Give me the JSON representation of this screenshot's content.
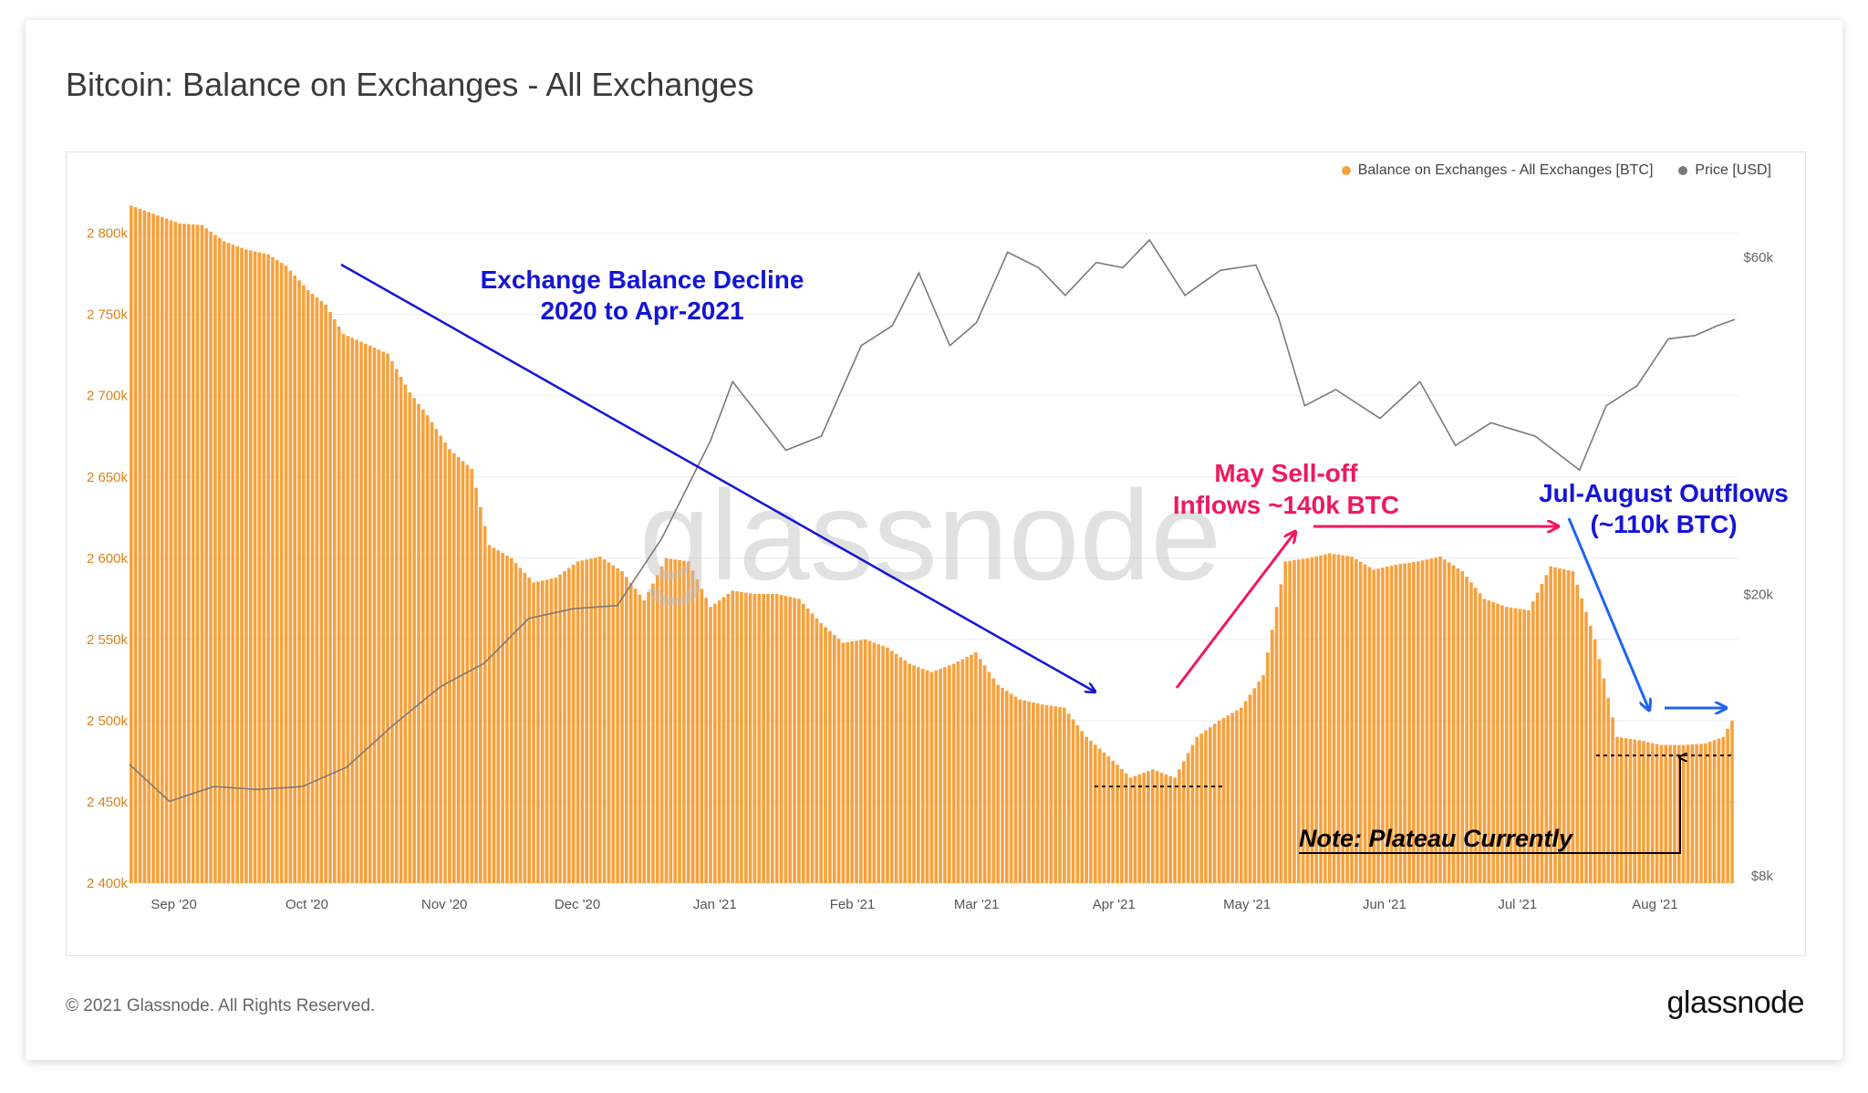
{
  "page": {
    "title": "Bitcoin: Balance on Exchanges - All Exchanges",
    "footer": "© 2021 Glassnode. All Rights Reserved.",
    "brand": "glassnode",
    "watermark": "glassnode"
  },
  "legend": [
    {
      "label": "Balance on Exchanges - All Exchanges [BTC]",
      "color": "#f7931a"
    },
    {
      "label": "Price [USD]",
      "color": "#7a7a7a"
    }
  ],
  "annotations": {
    "decline_line1": "Exchange Balance Decline",
    "decline_line2": "2020 to Apr-2021",
    "selloff_line1": "May Sell-off",
    "selloff_line2": "Inflows ~140k BTC",
    "outflow_line1": "Jul-August Outflows",
    "outflow_line2": "(~110k BTC)",
    "note": "Note: Plateau Currently"
  },
  "colors": {
    "bar": "#f7a13e",
    "price": "#7a7a7a",
    "blue_annotation": "#1414d6",
    "pink_annotation": "#f0185e",
    "bright_blue": "#1e64f0"
  },
  "chart_data": {
    "type": "bar",
    "x_ticks": [
      "Sep '20",
      "Oct '20",
      "Nov '20",
      "Dec '20",
      "Jan '21",
      "Feb '21",
      "Mar '21",
      "Apr '21",
      "May '21",
      "Jun '21",
      "Jul '21",
      "Aug '21"
    ],
    "y_left_ticks": [
      "2 400k",
      "2 450k",
      "2 500k",
      "2 550k",
      "2 600k",
      "2 650k",
      "2 700k",
      "2 750k",
      "2 800k"
    ],
    "y_left_range": [
      2400000,
      2820000
    ],
    "y_right_ticks": [
      "$8k",
      "$20k",
      "$60k"
    ],
    "y_right_scale": "log",
    "x_range": [
      "2020-08-27",
      "2021-08-24"
    ],
    "series": [
      {
        "name": "Balance on Exchanges - All Exchanges [BTC]",
        "kind": "bar",
        "points": [
          [
            "2020-08-27",
            2817000
          ],
          [
            "2020-09-01",
            2812000
          ],
          [
            "2020-09-07",
            2806000
          ],
          [
            "2020-09-12",
            2805000
          ],
          [
            "2020-09-17",
            2795000
          ],
          [
            "2020-09-22",
            2790000
          ],
          [
            "2020-09-27",
            2787000
          ],
          [
            "2020-10-01",
            2780000
          ],
          [
            "2020-10-06",
            2765000
          ],
          [
            "2020-10-10",
            2756000
          ],
          [
            "2020-10-14",
            2738000
          ],
          [
            "2020-10-19",
            2732000
          ],
          [
            "2020-10-24",
            2726000
          ],
          [
            "2020-10-29",
            2702000
          ],
          [
            "2020-11-02",
            2688000
          ],
          [
            "2020-11-07",
            2667000
          ],
          [
            "2020-11-12",
            2655000
          ],
          [
            "2020-11-16",
            2608000
          ],
          [
            "2020-11-21",
            2600000
          ],
          [
            "2020-11-26",
            2585000
          ],
          [
            "2020-12-01",
            2588000
          ],
          [
            "2020-12-06",
            2598000
          ],
          [
            "2020-12-11",
            2601000
          ],
          [
            "2020-12-16",
            2592000
          ],
          [
            "2020-12-21",
            2574000
          ],
          [
            "2020-12-26",
            2600000
          ],
          [
            "2020-12-31",
            2598000
          ],
          [
            "2021-01-05",
            2570000
          ],
          [
            "2021-01-10",
            2580000
          ],
          [
            "2021-01-15",
            2578000
          ],
          [
            "2021-01-20",
            2578000
          ],
          [
            "2021-01-25",
            2575000
          ],
          [
            "2021-01-30",
            2560000
          ],
          [
            "2021-02-04",
            2548000
          ],
          [
            "2021-02-09",
            2550000
          ],
          [
            "2021-02-14",
            2545000
          ],
          [
            "2021-02-19",
            2535000
          ],
          [
            "2021-02-24",
            2530000
          ],
          [
            "2021-03-01",
            2535000
          ],
          [
            "2021-03-06",
            2542000
          ],
          [
            "2021-03-11",
            2522000
          ],
          [
            "2021-03-16",
            2513000
          ],
          [
            "2021-03-21",
            2510000
          ],
          [
            "2021-03-26",
            2508000
          ],
          [
            "2021-03-31",
            2490000
          ],
          [
            "2021-04-05",
            2478000
          ],
          [
            "2021-04-10",
            2465000
          ],
          [
            "2021-04-15",
            2470000
          ],
          [
            "2021-04-20",
            2465000
          ],
          [
            "2021-04-25",
            2490000
          ],
          [
            "2021-04-30",
            2500000
          ],
          [
            "2021-05-05",
            2508000
          ],
          [
            "2021-05-10",
            2528000
          ],
          [
            "2021-05-15",
            2598000
          ],
          [
            "2021-05-20",
            2600000
          ],
          [
            "2021-05-25",
            2603000
          ],
          [
            "2021-05-30",
            2601000
          ],
          [
            "2021-06-04",
            2593000
          ],
          [
            "2021-06-09",
            2596000
          ],
          [
            "2021-06-14",
            2598000
          ],
          [
            "2021-06-19",
            2601000
          ],
          [
            "2021-06-24",
            2592000
          ],
          [
            "2021-06-29",
            2575000
          ],
          [
            "2021-07-04",
            2570000
          ],
          [
            "2021-07-09",
            2568000
          ],
          [
            "2021-07-14",
            2595000
          ],
          [
            "2021-07-19",
            2592000
          ],
          [
            "2021-07-24",
            2550000
          ],
          [
            "2021-07-29",
            2490000
          ],
          [
            "2021-08-03",
            2488000
          ],
          [
            "2021-08-08",
            2485000
          ],
          [
            "2021-08-13",
            2485000
          ],
          [
            "2021-08-18",
            2486000
          ],
          [
            "2021-08-22",
            2490000
          ],
          [
            "2021-08-24",
            2500000
          ]
        ]
      },
      {
        "name": "Price [USD]",
        "kind": "line",
        "points": [
          [
            "2020-08-27",
            11500
          ],
          [
            "2020-09-05",
            10200
          ],
          [
            "2020-09-15",
            10700
          ],
          [
            "2020-09-25",
            10600
          ],
          [
            "2020-10-05",
            10700
          ],
          [
            "2020-10-15",
            11400
          ],
          [
            "2020-10-25",
            13000
          ],
          [
            "2020-11-05",
            14800
          ],
          [
            "2020-11-15",
            16000
          ],
          [
            "2020-11-25",
            18500
          ],
          [
            "2020-12-05",
            19100
          ],
          [
            "2020-12-15",
            19300
          ],
          [
            "2020-12-25",
            24000
          ],
          [
            "2021-01-05",
            33000
          ],
          [
            "2021-01-10",
            40000
          ],
          [
            "2021-01-15",
            36500
          ],
          [
            "2021-01-22",
            32000
          ],
          [
            "2021-01-30",
            33500
          ],
          [
            "2021-02-08",
            45000
          ],
          [
            "2021-02-15",
            48000
          ],
          [
            "2021-02-21",
            57000
          ],
          [
            "2021-02-28",
            45000
          ],
          [
            "2021-03-06",
            48500
          ],
          [
            "2021-03-13",
            61000
          ],
          [
            "2021-03-20",
            58000
          ],
          [
            "2021-03-26",
            53000
          ],
          [
            "2021-04-02",
            59000
          ],
          [
            "2021-04-08",
            58000
          ],
          [
            "2021-04-14",
            63500
          ],
          [
            "2021-04-22",
            53000
          ],
          [
            "2021-04-30",
            57500
          ],
          [
            "2021-05-08",
            58500
          ],
          [
            "2021-05-13",
            49500
          ],
          [
            "2021-05-19",
            37000
          ],
          [
            "2021-05-26",
            39000
          ],
          [
            "2021-06-05",
            35500
          ],
          [
            "2021-06-14",
            40000
          ],
          [
            "2021-06-22",
            32500
          ],
          [
            "2021-06-30",
            35000
          ],
          [
            "2021-07-10",
            33500
          ],
          [
            "2021-07-20",
            30000
          ],
          [
            "2021-07-26",
            37000
          ],
          [
            "2021-08-02",
            39500
          ],
          [
            "2021-08-09",
            46000
          ],
          [
            "2021-08-15",
            46500
          ],
          [
            "2021-08-20",
            48000
          ],
          [
            "2021-08-24",
            49000
          ]
        ]
      }
    ]
  }
}
